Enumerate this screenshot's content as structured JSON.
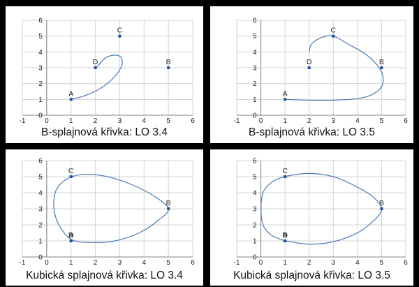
{
  "chart_data": [
    {
      "type": "line",
      "title": "B-splajnová křivka: LO 3.4",
      "xlim": [
        -1,
        6
      ],
      "ylim": [
        0,
        6
      ],
      "xticks": [
        "-1",
        "0",
        "1",
        "2",
        "3",
        "4",
        "5",
        "6"
      ],
      "yticks": [
        "0",
        "1",
        "2",
        "3",
        "4",
        "5",
        "6"
      ],
      "grid": true,
      "points": [
        {
          "label": "A",
          "x": 1,
          "y": 1
        },
        {
          "label": "D",
          "x": 2,
          "y": 3
        },
        {
          "label": "C",
          "x": 3,
          "y": 5
        },
        {
          "label": "B",
          "x": 5,
          "y": 3
        }
      ],
      "curve": {
        "x": [
          1,
          1.5,
          2.1,
          2.6,
          2.95,
          3.1,
          3.05,
          2.8,
          2.4,
          2.05
        ],
        "y": [
          1,
          1.2,
          1.6,
          2.15,
          2.75,
          3.25,
          3.65,
          3.8,
          3.6,
          3.0
        ]
      }
    },
    {
      "type": "line",
      "title": "B-splajnová křivka: LO 3.5",
      "xlim": [
        -1,
        6
      ],
      "ylim": [
        0,
        6
      ],
      "xticks": [
        "-1",
        "0",
        "1",
        "2",
        "3",
        "4",
        "5",
        "6"
      ],
      "yticks": [
        "0",
        "1",
        "2",
        "3",
        "4",
        "5",
        "6"
      ],
      "grid": true,
      "points": [
        {
          "label": "A",
          "x": 1,
          "y": 1
        },
        {
          "label": "D",
          "x": 2,
          "y": 3
        },
        {
          "label": "C",
          "x": 3,
          "y": 5
        },
        {
          "label": "B",
          "x": 5,
          "y": 3
        }
      ],
      "curve": {
        "x": [
          1,
          2,
          3,
          4,
          4.6,
          5,
          5.05,
          4.8,
          4.3,
          3.6,
          3,
          2.5,
          2.1,
          2
        ],
        "y": [
          1,
          0.95,
          0.95,
          1.05,
          1.3,
          1.8,
          2.5,
          3.2,
          3.9,
          4.5,
          5,
          4.9,
          4.5,
          4
        ]
      }
    },
    {
      "type": "line",
      "title": "Kubická splajnová křivka: LO 3.4",
      "xlim": [
        -1,
        6
      ],
      "ylim": [
        0,
        6
      ],
      "xticks": [
        "-1",
        "0",
        "1",
        "2",
        "3",
        "4",
        "5",
        "6"
      ],
      "yticks": [
        "0",
        "1",
        "2",
        "3",
        "4",
        "5",
        "6"
      ],
      "grid": true,
      "points": [
        {
          "label": "A",
          "x": 1,
          "y": 1
        },
        {
          "label": "D",
          "x": 1,
          "y": 1
        },
        {
          "label": "C",
          "x": 1,
          "y": 5
        },
        {
          "label": "B",
          "x": 5,
          "y": 3
        }
      ],
      "curve": {
        "x": [
          1,
          0.6,
          0.35,
          0.3,
          0.5,
          1,
          1.8,
          2.8,
          3.8,
          4.6,
          5,
          4.4,
          3.5,
          2.5,
          1.6,
          1
        ],
        "y": [
          5,
          4.6,
          4,
          3,
          2,
          1.1,
          0.9,
          1,
          1.5,
          2.3,
          3,
          3.8,
          4.5,
          5,
          5.15,
          5
        ]
      }
    },
    {
      "type": "line",
      "title": "Kubická splajnová křivka: LO 3.5",
      "xlim": [
        -1,
        6
      ],
      "ylim": [
        0,
        6
      ],
      "xticks": [
        "-1",
        "0",
        "1",
        "2",
        "3",
        "4",
        "5",
        "6"
      ],
      "yticks": [
        "0",
        "1",
        "2",
        "3",
        "4",
        "5",
        "6"
      ],
      "grid": true,
      "points": [
        {
          "label": "A",
          "x": 1,
          "y": 1
        },
        {
          "label": "D",
          "x": 1,
          "y": 1
        },
        {
          "label": "C",
          "x": 1,
          "y": 5
        },
        {
          "label": "B",
          "x": 5,
          "y": 3
        }
      ],
      "curve": {
        "x": [
          1,
          2,
          3,
          4,
          4.7,
          5,
          4.6,
          3.8,
          3,
          2,
          1,
          0.4,
          0.05,
          0.05,
          0.4,
          1
        ],
        "y": [
          1,
          0.8,
          0.95,
          1.5,
          2.3,
          3,
          3.8,
          4.5,
          5,
          5.2,
          5,
          4.6,
          3.8,
          2.2,
          1.4,
          1
        ]
      }
    }
  ],
  "colors": {
    "curve": "#4a79b5",
    "point": "#1f4f9a",
    "grid": "#d3d3d3",
    "axis": "#808080"
  }
}
